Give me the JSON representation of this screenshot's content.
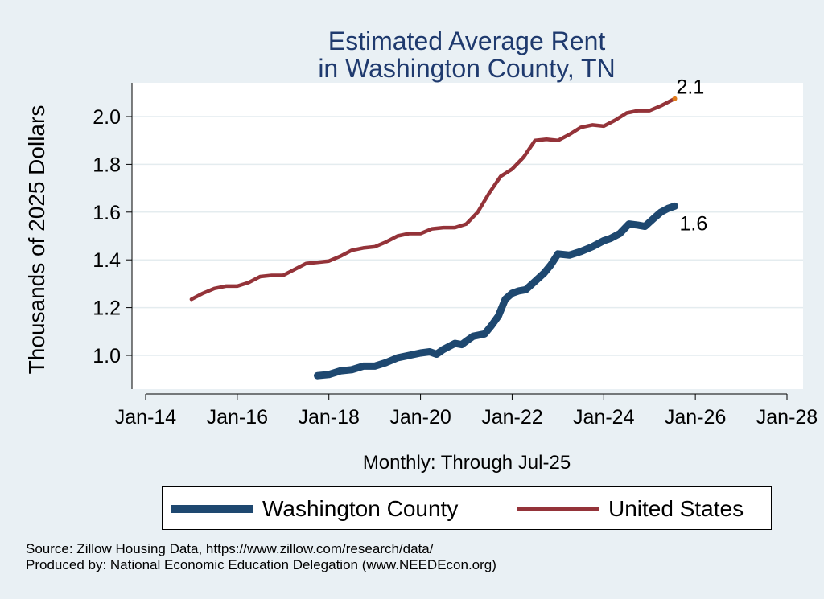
{
  "chart_data": {
    "type": "line",
    "title": [
      "Estimated Average Rent",
      "in Washington County, TN"
    ],
    "xlabel": "Monthly: Through Jul-25",
    "ylabel": "Thousands of 2025 Dollars",
    "xlim": [
      2013.5,
      2028.3
    ],
    "ylim": [
      0.9,
      2.12
    ],
    "x_ticks": [
      {
        "x": 2014,
        "label": "Jan-14"
      },
      {
        "x": 2016,
        "label": "Jan-16"
      },
      {
        "x": 2018,
        "label": "Jan-18"
      },
      {
        "x": 2020,
        "label": "Jan-20"
      },
      {
        "x": 2022,
        "label": "Jan-22"
      },
      {
        "x": 2024,
        "label": "Jan-24"
      },
      {
        "x": 2026,
        "label": "Jan-26"
      },
      {
        "x": 2028,
        "label": "Jan-28"
      }
    ],
    "y_ticks": [
      {
        "y": 1.0,
        "label": "1.0"
      },
      {
        "y": 1.2,
        "label": "1.2"
      },
      {
        "y": 1.4,
        "label": "1.4"
      },
      {
        "y": 1.6,
        "label": "1.6"
      },
      {
        "y": 1.8,
        "label": "1.8"
      },
      {
        "y": 2.0,
        "label": "2.0"
      }
    ],
    "grid": true,
    "legend_position": "bottom",
    "series": [
      {
        "name": "Washington County",
        "color": "#1e4870",
        "points": [
          [
            2017.75,
            0.915
          ],
          [
            2018.0,
            0.92
          ],
          [
            2018.25,
            0.935
          ],
          [
            2018.5,
            0.94
          ],
          [
            2018.75,
            0.955
          ],
          [
            2019.0,
            0.955
          ],
          [
            2019.25,
            0.97
          ],
          [
            2019.5,
            0.99
          ],
          [
            2019.75,
            1.0
          ],
          [
            2020.0,
            1.01
          ],
          [
            2020.2,
            1.015
          ],
          [
            2020.35,
            1.005
          ],
          [
            2020.5,
            1.025
          ],
          [
            2020.75,
            1.05
          ],
          [
            2020.9,
            1.045
          ],
          [
            2021.0,
            1.06
          ],
          [
            2021.15,
            1.08
          ],
          [
            2021.4,
            1.09
          ],
          [
            2021.55,
            1.125
          ],
          [
            2021.7,
            1.165
          ],
          [
            2021.85,
            1.235
          ],
          [
            2022.0,
            1.26
          ],
          [
            2022.15,
            1.27
          ],
          [
            2022.3,
            1.275
          ],
          [
            2022.5,
            1.31
          ],
          [
            2022.7,
            1.345
          ],
          [
            2022.85,
            1.38
          ],
          [
            2023.0,
            1.425
          ],
          [
            2023.25,
            1.42
          ],
          [
            2023.5,
            1.435
          ],
          [
            2023.75,
            1.455
          ],
          [
            2024.0,
            1.48
          ],
          [
            2024.15,
            1.49
          ],
          [
            2024.35,
            1.51
          ],
          [
            2024.55,
            1.55
          ],
          [
            2024.75,
            1.545
          ],
          [
            2024.9,
            1.54
          ],
          [
            2025.1,
            1.575
          ],
          [
            2025.25,
            1.6
          ],
          [
            2025.4,
            1.615
          ],
          [
            2025.55,
            1.625
          ]
        ],
        "end_label": "1.6"
      },
      {
        "name": "United States",
        "color": "#943339",
        "points": [
          [
            2015.0,
            1.235
          ],
          [
            2015.25,
            1.26
          ],
          [
            2015.5,
            1.28
          ],
          [
            2015.75,
            1.29
          ],
          [
            2016.0,
            1.29
          ],
          [
            2016.25,
            1.305
          ],
          [
            2016.5,
            1.33
          ],
          [
            2016.75,
            1.335
          ],
          [
            2017.0,
            1.335
          ],
          [
            2017.25,
            1.36
          ],
          [
            2017.5,
            1.385
          ],
          [
            2017.75,
            1.39
          ],
          [
            2018.0,
            1.395
          ],
          [
            2018.25,
            1.415
          ],
          [
            2018.5,
            1.44
          ],
          [
            2018.75,
            1.45
          ],
          [
            2019.0,
            1.455
          ],
          [
            2019.25,
            1.475
          ],
          [
            2019.5,
            1.5
          ],
          [
            2019.75,
            1.51
          ],
          [
            2020.0,
            1.51
          ],
          [
            2020.25,
            1.53
          ],
          [
            2020.5,
            1.535
          ],
          [
            2020.75,
            1.535
          ],
          [
            2021.0,
            1.55
          ],
          [
            2021.25,
            1.6
          ],
          [
            2021.5,
            1.68
          ],
          [
            2021.75,
            1.75
          ],
          [
            2022.0,
            1.78
          ],
          [
            2022.25,
            1.83
          ],
          [
            2022.5,
            1.9
          ],
          [
            2022.75,
            1.905
          ],
          [
            2023.0,
            1.9
          ],
          [
            2023.25,
            1.925
          ],
          [
            2023.5,
            1.955
          ],
          [
            2023.75,
            1.965
          ],
          [
            2024.0,
            1.96
          ],
          [
            2024.25,
            1.985
          ],
          [
            2024.5,
            2.015
          ],
          [
            2024.75,
            2.025
          ],
          [
            2025.0,
            2.025
          ],
          [
            2025.25,
            2.045
          ],
          [
            2025.55,
            2.075
          ]
        ],
        "end_label": "2.1",
        "end_marker_color": "#e07b1a"
      }
    ]
  },
  "source_lines": [
    "Source: Zillow Housing Data, https://www.zillow.com/research/data/",
    "Produced by: National Economic Education Delegation (www.NEEDEcon.org)"
  ]
}
